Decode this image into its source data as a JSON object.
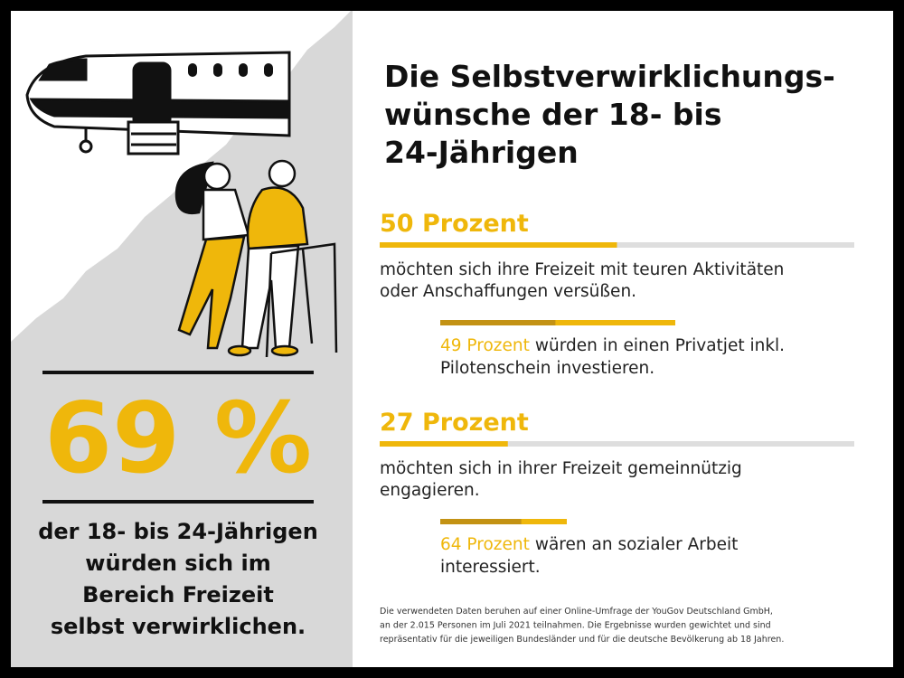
{
  "title": {
    "lines": [
      "Die Selbstverwirklichungs-",
      "wünsche der 18- bis",
      "24-Jährigen"
    ]
  },
  "highlight": {
    "value": "69 %",
    "lines": [
      "der 18- bis 24-Jährigen",
      "würden sich im",
      "Bereich Freizeit",
      "selbst verwirklichen."
    ]
  },
  "sections": [
    {
      "headline": {
        "value": 50,
        "label": "50 Prozent"
      },
      "text_lines": [
        "möchten sich ihre Freizeit mit teuren Aktivitäten",
        "oder Anschaffungen versüßen."
      ],
      "detail": {
        "share": {
          "value": 49,
          "label": "49 Prozent"
        },
        "text_lines": [
          "würden in einen Privatjet inkl.",
          "Pilotenschein investieren."
        ]
      }
    },
    {
      "headline": {
        "value": 27,
        "label": "27 Prozent"
      },
      "text_lines": [
        "möchten sich in ihrer Freizeit gemeinnützig",
        "engagieren."
      ],
      "detail": {
        "share": {
          "value": 64,
          "label": "64 Prozent"
        },
        "text_lines": [
          "wären an sozialer Arbeit",
          "interessiert."
        ]
      }
    }
  ],
  "footnote": {
    "lines": [
      "Die verwendeten Daten beruhen auf einer Online-Umfrage der YouGov Deutschland GmbH,",
      "an der 2.015 Personen im Juli 2021 teilnahmen. Die Ergebnisse wurden gewichtet und sind",
      "repräsentativ für die jeweiligen Bundesländer und für die deutsche Bevölkerung ab 18 Jahren."
    ]
  }
}
